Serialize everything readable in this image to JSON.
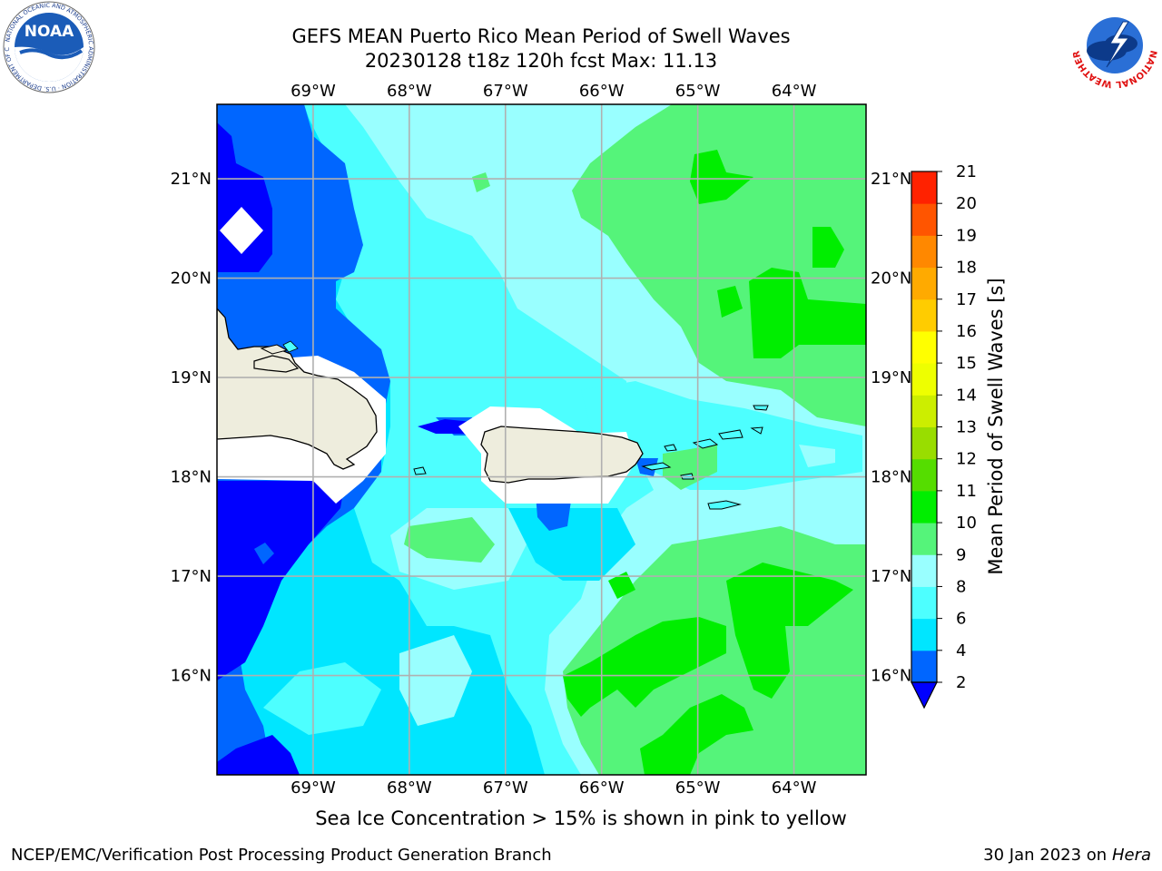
{
  "header": {
    "title_line1": "GEFS MEAN Puerto Rico Mean Period of Swell Waves",
    "title_line2": "20230128 t18z 120h fcst   Max: 11.13"
  },
  "logos": {
    "left": "noaa-logo",
    "left_text": "NOAA",
    "left_ring_text": "NATIONAL OCEANIC AND ATMOSPHERIC ADMINISTRATION · U.S. DEPARTMENT OF COMMERCE",
    "right": "nws-logo",
    "right_ring_text": "NATIONAL WEATHER SERVICE"
  },
  "map": {
    "lon_labels": [
      "69°W",
      "68°W",
      "67°W",
      "66°W",
      "65°W",
      "64°W"
    ],
    "lat_labels": [
      "21°N",
      "20°N",
      "19°N",
      "18°N",
      "17°N",
      "16°N"
    ],
    "lon_range": [
      -70.0,
      -63.25
    ],
    "lat_range": [
      15.0,
      21.75
    ],
    "grid": true,
    "colors": {
      "land": "#eeeddd",
      "coast": "#000000",
      "ice_mask": "#ffffff",
      "grid": "#b0b0b0"
    }
  },
  "colorbar": {
    "label": "Mean Period of Swell Waves [s]",
    "ticks": [
      "2",
      "4",
      "6",
      "8",
      "9",
      "10",
      "11",
      "12",
      "13",
      "14",
      "15",
      "16",
      "17",
      "18",
      "19",
      "20",
      "21"
    ],
    "bins": [
      {
        "from": 2,
        "to": 4,
        "color": "#0066ff"
      },
      {
        "from": 4,
        "to": 6,
        "color": "#00e6ff"
      },
      {
        "from": 6,
        "to": 8,
        "color": "#4dffff"
      },
      {
        "from": 8,
        "to": 9,
        "color": "#99ffff"
      },
      {
        "from": 9,
        "to": 10,
        "color": "#55f47a"
      },
      {
        "from": 10,
        "to": 11,
        "color": "#00ee00"
      },
      {
        "from": 11,
        "to": 12,
        "color": "#55dd00"
      },
      {
        "from": 12,
        "to": 13,
        "color": "#99dd00"
      },
      {
        "from": 13,
        "to": 14,
        "color": "#ccee00"
      },
      {
        "from": 14,
        "to": 15,
        "color": "#eeff00"
      },
      {
        "from": 15,
        "to": 16,
        "color": "#ffff00"
      },
      {
        "from": 16,
        "to": 17,
        "color": "#ffcc00"
      },
      {
        "from": 17,
        "to": 18,
        "color": "#ffaa00"
      },
      {
        "from": 18,
        "to": 19,
        "color": "#ff8800"
      },
      {
        "from": 19,
        "to": 20,
        "color": "#ff5500"
      },
      {
        "from": 20,
        "to": 21,
        "color": "#ff2200"
      }
    ],
    "under_color": "#0000ff"
  },
  "caption": "Sea Ice Concentration > 15% is shown in pink to yellow",
  "footer": {
    "left": "NCEP/EMC/Verification Post Processing Product Generation Branch",
    "right_prefix": "30 Jan 2023 on ",
    "right_host": "Hera"
  }
}
